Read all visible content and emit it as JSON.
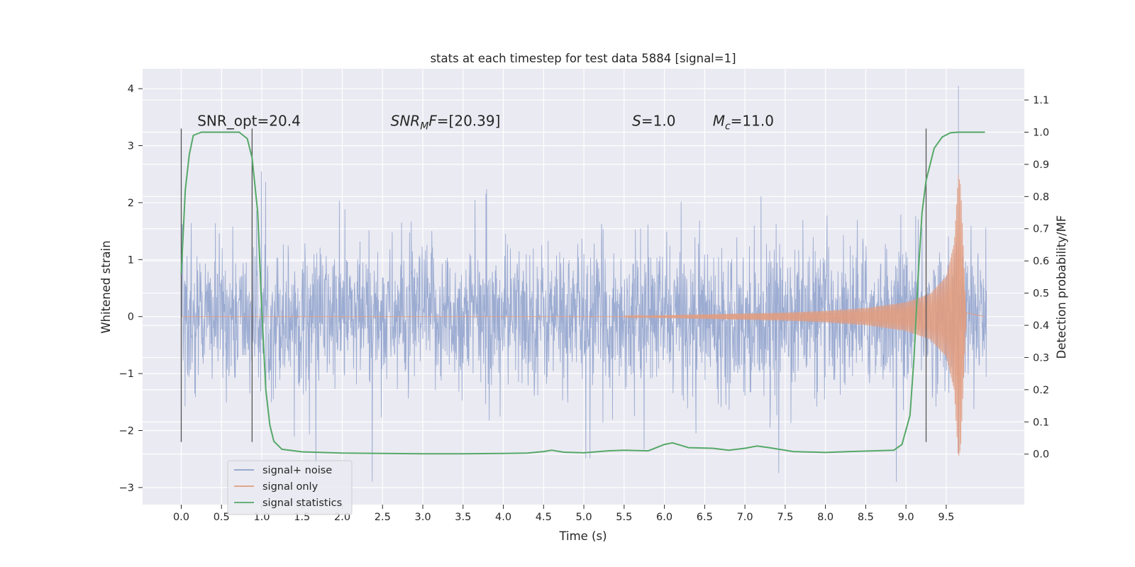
{
  "chart_data": {
    "type": "line",
    "title": "stats at each timestep for test data 5884 [signal=1]",
    "xlabel": "Time (s)",
    "ylabel": "Whitened strain",
    "y2label": "Detection probability/MF",
    "xlim": [
      -0.48,
      10.47
    ],
    "ylim": [
      -3.3,
      4.35
    ],
    "y2lim": [
      -0.157,
      1.197
    ],
    "x_ticks": [
      0.0,
      0.5,
      1.0,
      1.5,
      2.0,
      2.5,
      3.0,
      3.5,
      4.0,
      4.5,
      5.0,
      5.5,
      6.0,
      6.5,
      7.0,
      7.5,
      8.0,
      8.5,
      9.0,
      9.5
    ],
    "x_tick_labels": [
      "0.0",
      "0.5",
      "1.0",
      "1.5",
      "2.0",
      "2.5",
      "3.0",
      "3.5",
      "4.0",
      "4.5",
      "5.0",
      "5.5",
      "6.0",
      "6.5",
      "7.0",
      "7.5",
      "8.0",
      "8.5",
      "9.0",
      "9.5"
    ],
    "y_ticks": [
      -3,
      -2,
      -1,
      0,
      1,
      2,
      3,
      4
    ],
    "y_tick_labels": [
      "−3",
      "−2",
      "−1",
      "0",
      "1",
      "2",
      "3",
      "4"
    ],
    "y2_ticks": [
      0.0,
      0.1,
      0.2,
      0.3,
      0.4,
      0.5,
      0.6,
      0.7,
      0.8,
      0.9,
      1.0,
      1.1
    ],
    "y2_tick_labels": [
      "0.0",
      "0.1",
      "0.2",
      "0.3",
      "0.4",
      "0.5",
      "0.6",
      "0.7",
      "0.8",
      "0.9",
      "1.0",
      "1.1"
    ],
    "grid": true,
    "legend_position": "lower-left",
    "colors": {
      "background": "#eaeaf2",
      "grid": "#ffffff",
      "noise": "#8da0cb",
      "signal": "#e19c7f",
      "stats": "#55a868",
      "vlines": "#555555"
    },
    "annotations": [
      {
        "text": "SNR_opt=20.4",
        "x": 0.2,
        "y": 3.35
      },
      {
        "text": "SNRMF=[20.39]",
        "x": 2.6,
        "y": 3.35
      },
      {
        "text": "S=1.0",
        "x": 5.6,
        "y": 3.35
      },
      {
        "text": "Mc=11.0",
        "x": 6.6,
        "y": 3.35
      }
    ],
    "vertical_lines": [
      {
        "x": 0.0,
        "ymin": -2.2,
        "ymax": 3.3
      },
      {
        "x": 0.88,
        "ymin": -2.2,
        "ymax": 3.3
      },
      {
        "x": 9.25,
        "ymin": -2.2,
        "ymax": 3.3
      }
    ],
    "series": [
      {
        "name": "signal+ noise",
        "kind": "noise-envelope",
        "x_range": [
          0.0,
          9.65
        ],
        "typical_amplitude": 1.1,
        "peak_amplitude": 4.05,
        "peak_x": 9.65
      },
      {
        "name": "signal only",
        "kind": "chirp",
        "x_range": [
          5.5,
          9.75
        ],
        "x": [
          5.5,
          6.5,
          7.5,
          8.0,
          8.5,
          9.0,
          9.3,
          9.5,
          9.6,
          9.65,
          9.68,
          9.75
        ],
        "amplitude": [
          0.01,
          0.04,
          0.07,
          0.1,
          0.15,
          0.25,
          0.4,
          0.7,
          1.3,
          2.5,
          2.3,
          0.0
        ]
      },
      {
        "name": "signal statistics",
        "axis": "right",
        "x": [
          0.0,
          0.05,
          0.1,
          0.15,
          0.25,
          0.4,
          0.6,
          0.72,
          0.82,
          0.88,
          0.95,
          1.0,
          1.05,
          1.1,
          1.15,
          1.25,
          1.5,
          2.0,
          2.5,
          3.0,
          3.5,
          4.0,
          4.3,
          4.5,
          4.6,
          4.75,
          5.0,
          5.3,
          5.5,
          5.8,
          6.0,
          6.1,
          6.3,
          6.6,
          6.8,
          7.0,
          7.15,
          7.3,
          7.6,
          8.0,
          8.3,
          8.6,
          8.85,
          8.95,
          9.05,
          9.1,
          9.15,
          9.2,
          9.25,
          9.3,
          9.35,
          9.45,
          9.55,
          9.65,
          9.8,
          9.98
        ],
        "values": [
          0.56,
          0.82,
          0.93,
          0.99,
          1.0,
          1.0,
          1.0,
          1.0,
          0.98,
          0.92,
          0.75,
          0.45,
          0.2,
          0.09,
          0.04,
          0.015,
          0.007,
          0.003,
          0.002,
          0.001,
          0.001,
          0.002,
          0.003,
          0.008,
          0.012,
          0.006,
          0.004,
          0.01,
          0.012,
          0.01,
          0.03,
          0.035,
          0.02,
          0.018,
          0.012,
          0.018,
          0.025,
          0.02,
          0.008,
          0.005,
          0.008,
          0.01,
          0.012,
          0.03,
          0.12,
          0.3,
          0.55,
          0.75,
          0.85,
          0.9,
          0.95,
          0.985,
          0.998,
          1.0,
          1.0,
          1.0
        ]
      }
    ]
  }
}
